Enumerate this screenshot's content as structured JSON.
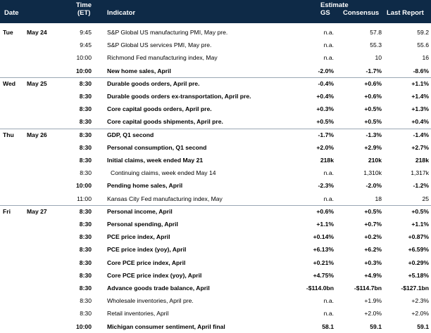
{
  "header": {
    "date": "Date",
    "time_line1": "Time",
    "time_line2": "(ET)",
    "indicator": "Indicator",
    "estimate": "Estimate",
    "gs": "GS",
    "consensus": "Consensus",
    "last_report": "Last Report"
  },
  "rows": [
    {
      "day": "Tue",
      "date": "May 24",
      "time": "9:45",
      "indicator": "S&P Global US manufacturing PMI, May pre.",
      "gs": "n.a.",
      "consensus": "57.8",
      "last": "59.2",
      "bold": false
    },
    {
      "day": "",
      "date": "",
      "time": "9:45",
      "indicator": "S&P Global US services PMI, May pre.",
      "gs": "n.a.",
      "consensus": "55.3",
      "last": "55.6",
      "bold": false
    },
    {
      "day": "",
      "date": "",
      "time": "10:00",
      "indicator": "Richmond Fed manufacturing index, May",
      "gs": "n.a.",
      "consensus": "10",
      "last": "16",
      "bold": false
    },
    {
      "day": "",
      "date": "",
      "time": "10:00",
      "indicator": "New home sales, April",
      "gs": "-2.0%",
      "consensus": "-1.7%",
      "last": "-8.6%",
      "bold": true
    },
    {
      "day": "Wed",
      "date": "May 25",
      "time": "8:30",
      "indicator": "Durable goods orders, April pre.",
      "gs": "-0.4%",
      "consensus": "+0.6%",
      "last": "+1.1%",
      "bold": true
    },
    {
      "day": "",
      "date": "",
      "time": "8:30",
      "indicator": "Durable goods orders ex-transportation, April pre.",
      "gs": "+0.4%",
      "consensus": "+0.6%",
      "last": "+1.4%",
      "bold": true
    },
    {
      "day": "",
      "date": "",
      "time": "8:30",
      "indicator": "Core capital goods orders, April pre.",
      "gs": "+0.3%",
      "consensus": "+0.5%",
      "last": "+1.3%",
      "bold": true
    },
    {
      "day": "",
      "date": "",
      "time": "8:30",
      "indicator": "Core capital goods shipments, April pre.",
      "gs": "+0.5%",
      "consensus": "+0.5%",
      "last": "+0.4%",
      "bold": true
    },
    {
      "day": "Thu",
      "date": "May 26",
      "time": "8:30",
      "indicator": "GDP, Q1 second",
      "gs": "-1.7%",
      "consensus": "-1.3%",
      "last": "-1.4%",
      "bold": true
    },
    {
      "day": "",
      "date": "",
      "time": "8:30",
      "indicator": "Personal consumption, Q1 second",
      "gs": "+2.0%",
      "consensus": "+2.9%",
      "last": "+2.7%",
      "bold": true
    },
    {
      "day": "",
      "date": "",
      "time": "8:30",
      "indicator": "Initial claims, week ended May 21",
      "gs": "218k",
      "consensus": "210k",
      "last": "218k",
      "bold": true
    },
    {
      "day": "",
      "date": "",
      "time": "8:30",
      "indicator": "Continuing claims, week ended May 14",
      "gs": "n.a.",
      "consensus": "1,310k",
      "last": "1,317k",
      "bold": false,
      "indent": true
    },
    {
      "day": "",
      "date": "",
      "time": "10:00",
      "indicator": "Pending home sales, April",
      "gs": "-2.3%",
      "consensus": "-2.0%",
      "last": "-1.2%",
      "bold": true
    },
    {
      "day": "",
      "date": "",
      "time": "11:00",
      "indicator": "Kansas City Fed manufacturing index, May",
      "gs": "n.a.",
      "consensus": "18",
      "last": "25",
      "bold": false
    },
    {
      "day": "Fri",
      "date": "May 27",
      "time": "8:30",
      "indicator": "Personal income, April",
      "gs": "+0.6%",
      "consensus": "+0.5%",
      "last": "+0.5%",
      "bold": true
    },
    {
      "day": "",
      "date": "",
      "time": "8:30",
      "indicator": "Personal spending, April",
      "gs": "+1.1%",
      "consensus": "+0.7%",
      "last": "+1.1%",
      "bold": true
    },
    {
      "day": "",
      "date": "",
      "time": "8:30",
      "indicator": "PCE price index, April",
      "gs": "+0.14%",
      "consensus": "+0.2%",
      "last": "+0.87%",
      "bold": true
    },
    {
      "day": "",
      "date": "",
      "time": "8:30",
      "indicator": "PCE price index (yoy), April",
      "gs": "+6.13%",
      "consensus": "+6.2%",
      "last": "+6.59%",
      "bold": true
    },
    {
      "day": "",
      "date": "",
      "time": "8:30",
      "indicator": "Core PCE price index, April",
      "gs": "+0.21%",
      "consensus": "+0.3%",
      "last": "+0.29%",
      "bold": true
    },
    {
      "day": "",
      "date": "",
      "time": "8:30",
      "indicator": "Core PCE price index (yoy), April",
      "gs": "+4.75%",
      "consensus": "+4.9%",
      "last": "+5.18%",
      "bold": true
    },
    {
      "day": "",
      "date": "",
      "time": "8:30",
      "indicator": "Advance goods trade balance, April",
      "gs": "-$114.0bn",
      "consensus": "-$114.7bn",
      "last": "-$127.1bn",
      "bold": true
    },
    {
      "day": "",
      "date": "",
      "time": "8:30",
      "indicator": "Wholesale inventories, April pre.",
      "gs": "n.a.",
      "consensus": "+1.9%",
      "last": "+2.3%",
      "bold": false
    },
    {
      "day": "",
      "date": "",
      "time": "8:30",
      "indicator": "Retail inventories, April",
      "gs": "n.a.",
      "consensus": "+2.0%",
      "last": "+2.0%",
      "bold": false
    },
    {
      "day": "",
      "date": "",
      "time": "10:00",
      "indicator": "Michigan consumer sentiment, April final",
      "gs": "58.1",
      "consensus": "59.1",
      "last": "59.1",
      "bold": true
    }
  ],
  "separators_after_row": [
    3,
    7,
    13
  ],
  "colors": {
    "header_bg": "#0e2a47",
    "header_text": "#ffffff"
  }
}
